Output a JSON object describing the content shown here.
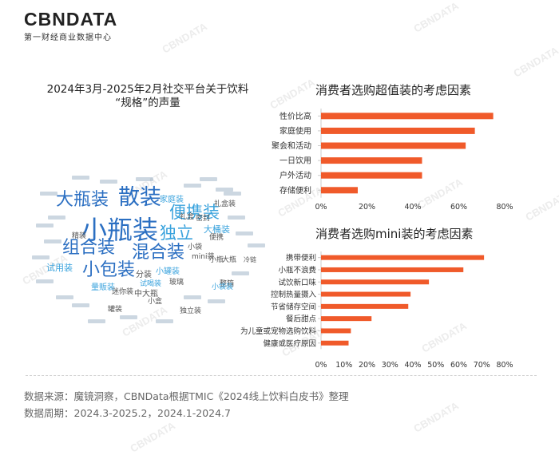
{
  "brand": {
    "logo": "CBNDATA",
    "tagline": "第一财经商业数据中心"
  },
  "watermark": "CBNDATA",
  "left_panel": {
    "title_line1": "2024年3月-2025年2月社交平台关于饮料",
    "title_line2": "“规格”的声量"
  },
  "word_cloud": {
    "big_words": [
      {
        "text": "小瓶装",
        "color": "#2b6fc2"
      },
      {
        "text": "散装",
        "color": "#2b6fc2"
      },
      {
        "text": "大瓶装",
        "color": "#2b6fc2"
      },
      {
        "text": "组合装",
        "color": "#2b6fc2"
      },
      {
        "text": "混合装",
        "color": "#2b6fc2"
      },
      {
        "text": "小包装",
        "color": "#2b6fc2"
      },
      {
        "text": "便携装",
        "color": "#3aa3dd"
      },
      {
        "text": "独立",
        "color": "#3aa3dd"
      }
    ],
    "mid_words": [
      {
        "text": "大桶装",
        "color": "#3aa3dd"
      },
      {
        "text": "试用装",
        "color": "#3aa3dd"
      },
      {
        "text": "家庭装",
        "color": "#3aa3dd"
      },
      {
        "text": "小罐装",
        "color": "#3aa3dd"
      },
      {
        "text": "分装",
        "color": "#555555"
      },
      {
        "text": "量贩装",
        "color": "#3aa3dd"
      },
      {
        "text": "中大瓶",
        "color": "#555555"
      },
      {
        "text": "小袋",
        "color": "#555555"
      },
      {
        "text": "试喝装",
        "color": "#3aa3dd"
      },
      {
        "text": "mini装",
        "color": "#555555"
      },
      {
        "text": "礼盒",
        "color": "#555555"
      },
      {
        "text": "精装",
        "color": "#555555"
      },
      {
        "text": "玻璃",
        "color": "#555555"
      },
      {
        "text": "小瓶",
        "color": "#555555"
      },
      {
        "text": "大瓶",
        "color": "#555555"
      },
      {
        "text": "冷链",
        "color": "#555555"
      },
      {
        "text": "迷你装",
        "color": "#555555"
      },
      {
        "text": "独立装",
        "color": "#555555"
      },
      {
        "text": "整箱",
        "color": "#555555"
      },
      {
        "text": "小盒",
        "color": "#555555"
      },
      {
        "text": "罐装",
        "color": "#555555"
      },
      {
        "text": "便携",
        "color": "#555555"
      },
      {
        "text": "密封",
        "color": "#555555"
      },
      {
        "text": "小袋装",
        "color": "#3aa3dd"
      },
      {
        "text": "礼盒装",
        "color": "#555555"
      }
    ]
  },
  "chart_data": [
    {
      "type": "bar",
      "orientation": "horizontal",
      "title": "消费者选购超值装的考虑因素",
      "categories": [
        "性价比高",
        "家庭使用",
        "聚会和活动",
        "一日饮用",
        "户外活动",
        "存储便利"
      ],
      "values": [
        75,
        67,
        63,
        44,
        44,
        16
      ],
      "unit": "%",
      "xlim": [
        0,
        80
      ],
      "xticks": [
        "0%",
        "20%",
        "40%",
        "60%",
        "80%"
      ],
      "color": "#f05a2a"
    },
    {
      "type": "bar",
      "orientation": "horizontal",
      "title": "消费者选购mini装的考虑因素",
      "categories": [
        "携带便利",
        "小瓶不浪费",
        "试饮新口味",
        "控制热量摄入",
        "节省储存空间",
        "餐后甜点",
        "为儿童或宠物选购饮料",
        "健康或医疗原因"
      ],
      "values": [
        71,
        62,
        47,
        39,
        38,
        22,
        13,
        12
      ],
      "unit": "%",
      "xlim": [
        0,
        80
      ],
      "xticks": [
        "0%",
        "10%",
        "20%",
        "30%",
        "40%",
        "50%",
        "60%",
        "70%",
        "80%"
      ],
      "color": "#f05a2a"
    }
  ],
  "footer": {
    "source": "数据来源：魔镜洞察，CBNData根据TMIC《2024线上饮料白皮书》整理",
    "period": "数据周期：2024.3-2025.2，2024.1-2024.7"
  }
}
